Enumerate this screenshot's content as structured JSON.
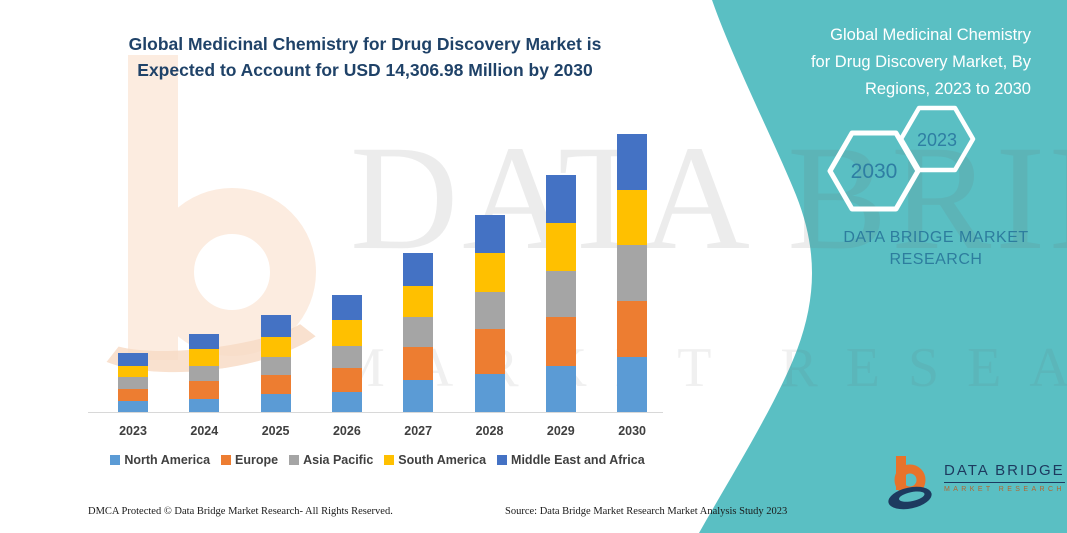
{
  "colors": {
    "accent_teal": "#5ABFC3",
    "title_navy": "#1F4268",
    "hexagon_year_text": "#2E7EA3",
    "brand_panel_text": "#2D7D9E",
    "logo_navy": "#1D3A5F",
    "logo_orange": "#E8732A",
    "north_america": "#5B9BD5",
    "europe": "#ED7D31",
    "asia_pacific": "#A5A5A5",
    "south_america": "#FFC000",
    "middle_east_africa": "#4472C4"
  },
  "header": {
    "title_lines": {
      "0": "Global Medicinal Chemistry for Drug Discovery Market is",
      "1": "Expected to Account for USD 14,306.98 Million by 2030"
    }
  },
  "side_panel": {
    "title_lines": {
      "0": "Global Medicinal Chemistry",
      "1": "for Drug Discovery Market, By",
      "2": "Regions, 2023 to 2030"
    },
    "hexagon_back_label": "2030",
    "hexagon_front_label": "2023",
    "brand_lines": {
      "0": "DATA BRIDGE MARKET",
      "1": "RESEARCH"
    }
  },
  "footer": {
    "dmca": "DMCA Protected © Data Bridge Market Research-  All Rights Reserved.",
    "source": "Source: Data Bridge Market Research  Market Analysis Study 2023"
  },
  "logo": {
    "name": "DATA BRIDGE",
    "subtitle": "MARKET RESEARCH"
  },
  "chart_data": {
    "type": "bar",
    "stacked": true,
    "title": "Global Medicinal Chemistry for Drug Discovery Market is Expected to Account for USD 14,306.98 Million by 2030",
    "unit": "USD Million",
    "highlight_value": "USD 14,306.98 Million by 2030",
    "categories": [
      "2023",
      "2024",
      "2025",
      "2026",
      "2027",
      "2028",
      "2029",
      "2030"
    ],
    "series": [
      {
        "name": "North America",
        "color": "#5B9BD5",
        "values": [
          551,
          669,
          926,
          1014,
          1631,
          1956,
          2383,
          2846
        ]
      },
      {
        "name": "Europe",
        "color": "#ED7D31",
        "values": [
          633,
          911,
          978,
          1251,
          1714,
          2316,
          2486,
          2882
        ]
      },
      {
        "name": "Asia Pacific",
        "color": "#A5A5A5",
        "values": [
          618,
          772,
          942,
          1132,
          1544,
          1889,
          2403,
          2867
        ]
      },
      {
        "name": "South America",
        "color": "#FFC000",
        "values": [
          582,
          890,
          1029,
          1338,
          1580,
          2007,
          2434,
          2830
        ]
      },
      {
        "name": "Middle East and Africa",
        "color": "#4472C4",
        "values": [
          654,
          772,
          1117,
          1287,
          1698,
          1956,
          2486,
          2882
        ]
      }
    ],
    "totals_estimated": [
      3038,
      4014,
      4992,
      6022,
      8167,
      10124,
      12192,
      14307
    ],
    "y_axis_visible": false,
    "gridlines": false,
    "legend_position": "bottom"
  }
}
